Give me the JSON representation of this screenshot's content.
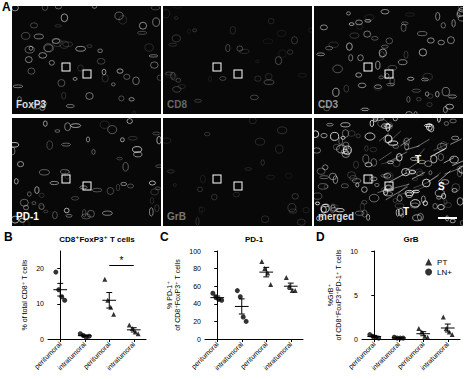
{
  "panel_a": {
    "label": "A",
    "images": [
      {
        "label": "FoxP3"
      },
      {
        "label": "CD8"
      },
      {
        "label": "CD3"
      },
      {
        "label": "PD-1"
      },
      {
        "label": "GrB"
      },
      {
        "label": "merged",
        "annotations": [
          "T",
          "S",
          "T"
        ]
      }
    ]
  },
  "chart_data": [
    {
      "panel_label": "B",
      "type": "scatter",
      "title": "CD8⁺FoxP3⁺ T cells",
      "ylabel": "% of total CD8⁺ T cells",
      "categories": [
        "peritumoral",
        "intratumoral",
        "peritumoral",
        "intratumoral"
      ],
      "ylim": [
        0,
        25
      ],
      "yticks": [
        0,
        10,
        20
      ],
      "grid": false,
      "series": [
        {
          "name": "PT",
          "marker": "triangle",
          "color": "#000000",
          "values": [
            null,
            null,
            [
              17,
              11,
              9,
              7
            ],
            [
              4,
              3,
              2,
              1.5
            ]
          ],
          "means": [
            null,
            null,
            11,
            2.6
          ],
          "errors": [
            null,
            null,
            2.2,
            0.6
          ]
        },
        {
          "name": "LN+",
          "marker": "circle",
          "color": "#000000",
          "values": [
            [
              19,
              14,
              12,
              11
            ],
            [
              1.5,
              1,
              0.5,
              0.8
            ],
            null,
            null
          ],
          "means": [
            14,
            0.95,
            null,
            null
          ],
          "errors": [
            1.8,
            0.2,
            null,
            null
          ]
        }
      ],
      "annotations": [
        {
          "text": "*",
          "from": 2,
          "to": 3
        }
      ]
    },
    {
      "panel_label": "C",
      "type": "scatter",
      "title": "PD-1",
      "ylabel": "% PD-1⁺\nof CD8⁺FoxP3⁺ T cells",
      "categories": [
        "peritumoral",
        "intratumoral",
        "peritumoral",
        "intratumoral"
      ],
      "ylim": [
        0,
        100
      ],
      "yticks": [
        0,
        20,
        40,
        60,
        80,
        100
      ],
      "grid": false,
      "series": [
        {
          "name": "PT",
          "marker": "triangle",
          "color": "#000000",
          "values": [
            null,
            null,
            [
              88,
              80,
              75,
              62
            ],
            [
              70,
              60,
              55,
              55
            ]
          ],
          "means": [
            null,
            null,
            76,
            60
          ],
          "errors": [
            null,
            null,
            5.4,
            3.5
          ]
        },
        {
          "name": "LN+",
          "marker": "circle",
          "color": "#000000",
          "values": [
            [
              52,
              48,
              45,
              44
            ],
            [
              55,
              48,
              25,
              20
            ],
            null,
            null
          ],
          "means": [
            47,
            37,
            null,
            null
          ],
          "errors": [
            1.8,
            8.6,
            null,
            null
          ]
        }
      ]
    },
    {
      "panel_label": "D",
      "type": "scatter",
      "title": "GrB",
      "ylabel": "%GrB⁺\nof CD8⁺FoxP3⁺PD-1⁺ T cells",
      "categories": [
        "peritumoral",
        "intratumoral",
        "peritumoral",
        "intratumoral"
      ],
      "ylim": [
        0,
        10
      ],
      "yticks": [
        0,
        5,
        10
      ],
      "grid": false,
      "legend": "upper right",
      "series": [
        {
          "name": "PT",
          "marker": "triangle",
          "color": "#000000",
          "values": [
            null,
            null,
            [
              1.2,
              0.8,
              0.3,
              0.2
            ],
            [
              2.5,
              1.2,
              0.8,
              0.5
            ]
          ],
          "means": [
            null,
            null,
            0.6,
            1.25
          ],
          "errors": [
            null,
            null,
            0.23,
            0.45
          ]
        },
        {
          "name": "LN+",
          "marker": "circle",
          "color": "#000000",
          "values": [
            [
              0.5,
              0.3,
              0.2,
              0.1
            ],
            [
              0.2,
              0.1,
              0.1,
              0.1
            ],
            null,
            null
          ],
          "means": [
            0.28,
            0.13,
            null,
            null
          ],
          "errors": [
            0.09,
            0.03,
            null,
            null
          ]
        }
      ]
    }
  ]
}
